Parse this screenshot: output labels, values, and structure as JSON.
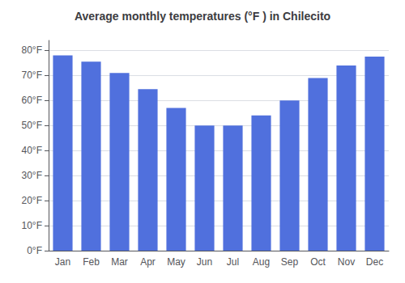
{
  "chart_data": {
    "type": "bar",
    "title": "Average monthly temperatures (°F ) in Chilecito",
    "categories": [
      "Jan",
      "Feb",
      "Mar",
      "Apr",
      "May",
      "Jun",
      "Jul",
      "Aug",
      "Sep",
      "Oct",
      "Nov",
      "Dec"
    ],
    "values": [
      78,
      75.5,
      71,
      64.5,
      57,
      50,
      50,
      54,
      60,
      69,
      74,
      77.5
    ],
    "ylim": [
      0,
      84
    ],
    "yticks": [
      {
        "value": 0,
        "label": "0°F"
      },
      {
        "value": 10,
        "label": "10°F"
      },
      {
        "value": 20,
        "label": "20°F"
      },
      {
        "value": 30,
        "label": "30°F"
      },
      {
        "value": 40,
        "label": "40°F"
      },
      {
        "value": 50,
        "label": "50°F"
      },
      {
        "value": 60,
        "label": "60°F"
      },
      {
        "value": 70,
        "label": "70°F"
      },
      {
        "value": 80,
        "label": "80°F"
      }
    ],
    "grid": true
  }
}
